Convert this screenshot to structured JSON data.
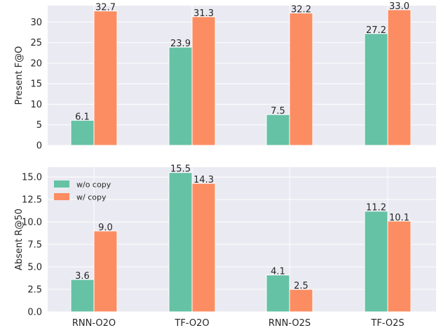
{
  "chart_data": [
    {
      "type": "bar",
      "categories": [
        "RNN-O2O",
        "TF-O2O",
        "RNN-O2S",
        "TF-O2S"
      ],
      "series": [
        {
          "name": "w/o copy",
          "values": [
            6.1,
            23.9,
            7.5,
            27.2
          ],
          "labels": [
            "6.1",
            "23.9",
            "7.5",
            "27.2"
          ],
          "color": "#66c2a5"
        },
        {
          "name": "w/ copy",
          "values": [
            32.7,
            31.3,
            32.2,
            33.0
          ],
          "labels": [
            "32.7",
            "31.3",
            "32.2",
            "33.0"
          ],
          "color": "#fc8d62"
        }
      ],
      "xlabel": "",
      "ylabel": "Present F@O",
      "ylim": [
        0,
        34
      ],
      "yticks": [
        "0",
        "5",
        "10",
        "15",
        "20",
        "25",
        "30"
      ],
      "yticks_values": [
        0,
        5,
        10,
        15,
        20,
        25,
        30
      ],
      "show_xtick_labels": false,
      "grid": true,
      "legend": "none"
    },
    {
      "type": "bar",
      "categories": [
        "RNN-O2O",
        "TF-O2O",
        "RNN-O2S",
        "TF-O2S"
      ],
      "series": [
        {
          "name": "w/o copy",
          "values": [
            3.6,
            15.5,
            4.1,
            11.2
          ],
          "labels": [
            "3.6",
            "15.5",
            "4.1",
            "11.2"
          ],
          "color": "#66c2a5"
        },
        {
          "name": "w/ copy",
          "values": [
            9.0,
            14.3,
            2.5,
            10.1
          ],
          "labels": [
            "9.0",
            "14.3",
            "2.5",
            "10.1"
          ],
          "color": "#fc8d62"
        }
      ],
      "xlabel": "",
      "ylabel": "Absent R@50",
      "ylim": [
        0,
        16.1
      ],
      "yticks": [
        "0.0",
        "2.5",
        "5.0",
        "7.5",
        "10.0",
        "12.5",
        "15.0"
      ],
      "yticks_values": [
        0,
        2.5,
        5,
        7.5,
        10,
        12.5,
        15
      ],
      "show_xtick_labels": true,
      "grid": true,
      "legend": "top-left"
    }
  ],
  "colors": {
    "background": "#eaeaf2",
    "grid": "#ffffff",
    "series_1": "#66c2a5",
    "series_2": "#fc8d62"
  }
}
